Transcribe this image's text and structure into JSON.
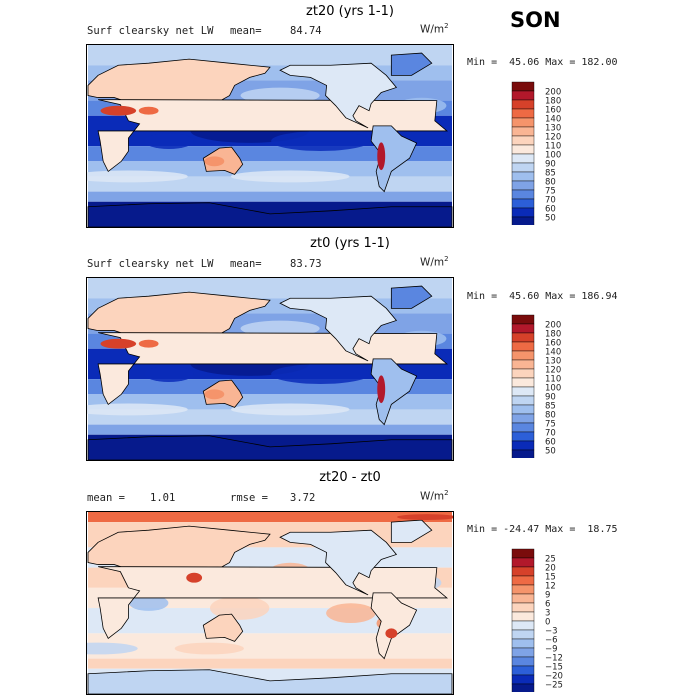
{
  "season": "SON",
  "units_main": "W/m",
  "units_sup": "2",
  "panels": [
    {
      "title": "zt20 (yrs 1-1)",
      "left_label": "Surf clearsky net LW",
      "stat_label": "mean=",
      "stat_value": "84.74",
      "stat2_label": "",
      "stat2_value": "",
      "minmax": "Min =  45.06 Max = 182.00",
      "levels": [
        "200",
        "180",
        "160",
        "140",
        "130",
        "120",
        "110",
        "100",
        "90",
        "85",
        "80",
        "75",
        "70",
        "60",
        "50"
      ]
    },
    {
      "title": "zt0 (yrs 1-1)",
      "left_label": "Surf clearsky net LW",
      "stat_label": "mean=",
      "stat_value": "83.73",
      "stat2_label": "",
      "stat2_value": "",
      "minmax": "Min =  45.60 Max = 186.94",
      "levels": [
        "200",
        "180",
        "160",
        "140",
        "130",
        "120",
        "110",
        "100",
        "90",
        "85",
        "80",
        "75",
        "70",
        "60",
        "50"
      ]
    },
    {
      "title": "zt20 - zt0",
      "left_label": "",
      "stat_label": "mean =",
      "stat_value": "1.01",
      "stat2_label": "rmse =",
      "stat2_value": "3.72",
      "minmax": "Min = -24.47 Max =  18.75",
      "levels": [
        "25",
        "20",
        "15",
        "12",
        "9",
        "6",
        "3",
        "0",
        "−3",
        "−6",
        "−9",
        "−12",
        "−15",
        "−20",
        "−25"
      ]
    }
  ],
  "colors": {
    "scale": [
      "#7a0c0c",
      "#b2182b",
      "#d6412a",
      "#ee6a44",
      "#f5946b",
      "#f9b594",
      "#fcd4bd",
      "#fbe9dd",
      "#dde8f6",
      "#bfd5f2",
      "#9fbfee",
      "#7fa3e6",
      "#5a86e0",
      "#2c5fd8",
      "#0a2bb8",
      "#061a8c"
    ]
  }
}
